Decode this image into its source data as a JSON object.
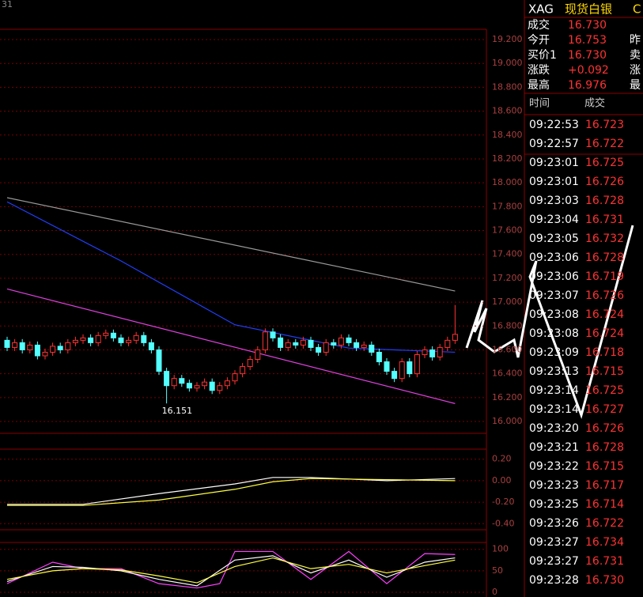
{
  "corner_label": "31",
  "chart_data": [
    {
      "type": "candlestick",
      "annotation": "16.151",
      "ylim": [
        16,
        19.2
      ],
      "yticks": [
        {
          "value": 19.2,
          "label": "19.200"
        },
        {
          "value": 19.0,
          "label": "19.000"
        },
        {
          "value": 18.8,
          "label": "18.800"
        },
        {
          "value": 18.6,
          "label": "18.600"
        },
        {
          "value": 18.4,
          "label": "18.400"
        },
        {
          "value": 18.2,
          "label": "18.200"
        },
        {
          "value": 18.0,
          "label": "18.000"
        },
        {
          "value": 17.8,
          "label": "17.800"
        },
        {
          "value": 17.6,
          "label": "17.600"
        },
        {
          "value": 17.4,
          "label": "17.400"
        },
        {
          "value": 17.2,
          "label": "17.200"
        },
        {
          "value": 17.0,
          "label": "17.000"
        },
        {
          "value": 16.8,
          "label": "16.800"
        },
        {
          "value": 16.6,
          "label": "16.600"
        },
        {
          "value": 16.4,
          "label": "16.400"
        },
        {
          "value": 16.2,
          "label": "16.200"
        },
        {
          "value": 16.0,
          "label": "16.000"
        }
      ],
      "up_color": "#ff3232",
      "down_color": "#54ffff",
      "open": [
        16.68,
        16.62,
        16.66,
        16.6,
        16.64,
        16.55,
        16.58,
        16.63,
        16.6,
        16.66,
        16.68,
        16.7,
        16.66,
        16.72,
        16.74,
        16.7,
        16.66,
        16.68,
        16.72,
        16.66,
        16.6,
        16.42,
        16.3,
        16.36,
        16.32,
        16.28,
        16.3,
        16.33,
        16.26,
        16.3,
        16.34,
        16.4,
        16.46,
        16.52,
        16.6,
        16.75,
        16.7,
        16.62,
        16.66,
        16.64,
        16.68,
        16.62,
        16.58,
        16.66,
        16.64,
        16.7,
        16.66,
        16.62,
        16.64,
        16.58,
        16.5,
        16.42,
        16.36,
        16.5,
        16.4,
        16.56,
        16.6,
        16.54,
        16.62,
        16.68
      ],
      "high": [
        16.71,
        16.69,
        16.69,
        16.67,
        16.67,
        16.61,
        16.66,
        16.66,
        16.69,
        16.71,
        16.73,
        16.73,
        16.75,
        16.77,
        16.77,
        16.73,
        16.71,
        16.75,
        16.75,
        16.69,
        16.63,
        16.45,
        16.39,
        16.39,
        16.35,
        16.33,
        16.36,
        16.36,
        16.33,
        16.37,
        16.43,
        16.49,
        16.55,
        16.63,
        16.78,
        16.78,
        16.73,
        16.69,
        16.69,
        16.71,
        16.71,
        16.65,
        16.69,
        16.69,
        16.73,
        16.73,
        16.69,
        16.67,
        16.67,
        16.61,
        16.53,
        16.45,
        16.53,
        16.53,
        16.59,
        16.63,
        16.63,
        16.65,
        16.71,
        16.976
      ],
      "low": [
        16.59,
        16.59,
        16.57,
        16.57,
        16.52,
        16.52,
        16.55,
        16.57,
        16.57,
        16.63,
        16.65,
        16.63,
        16.63,
        16.69,
        16.67,
        16.63,
        16.63,
        16.65,
        16.63,
        16.57,
        16.39,
        16.151,
        16.27,
        16.29,
        16.25,
        16.25,
        16.27,
        16.23,
        16.23,
        16.27,
        16.31,
        16.37,
        16.43,
        16.49,
        16.57,
        16.67,
        16.59,
        16.59,
        16.61,
        16.61,
        16.59,
        16.55,
        16.55,
        16.61,
        16.61,
        16.63,
        16.59,
        16.59,
        16.55,
        16.47,
        16.39,
        16.33,
        16.33,
        16.37,
        16.37,
        16.53,
        16.51,
        16.51,
        16.59,
        16.65
      ],
      "close": [
        16.62,
        16.66,
        16.6,
        16.64,
        16.55,
        16.58,
        16.63,
        16.6,
        16.66,
        16.68,
        16.7,
        16.66,
        16.72,
        16.74,
        16.7,
        16.66,
        16.68,
        16.72,
        16.66,
        16.6,
        16.42,
        16.3,
        16.36,
        16.32,
        16.28,
        16.3,
        16.33,
        16.26,
        16.3,
        16.34,
        16.4,
        16.46,
        16.52,
        16.6,
        16.75,
        16.7,
        16.62,
        16.66,
        16.64,
        16.68,
        16.62,
        16.58,
        16.66,
        16.64,
        16.7,
        16.66,
        16.62,
        16.64,
        16.58,
        16.5,
        16.42,
        16.36,
        16.5,
        16.4,
        16.56,
        16.6,
        16.54,
        16.62,
        16.68,
        16.73
      ],
      "lines": [
        {
          "color": "#9a9a9a",
          "x": [
            0,
            59
          ],
          "values": [
            17.875,
            17.093
          ]
        },
        {
          "color": "#2040ff",
          "x": [
            0,
            15,
            30,
            45,
            59
          ],
          "values": [
            17.84,
            17.345,
            16.81,
            16.615,
            16.58
          ]
        },
        {
          "color": "#e040e0",
          "x": [
            0,
            59
          ],
          "values": [
            17.11,
            16.15
          ]
        }
      ]
    },
    {
      "type": "line",
      "ylim": [
        -0.42,
        0.22
      ],
      "yticks": [
        {
          "value": 0.2,
          "label": "0.20"
        },
        {
          "value": 0,
          "label": "0.00"
        },
        {
          "value": -0.2,
          "label": "-0.20"
        },
        {
          "value": -0.4,
          "label": "-0.40"
        }
      ],
      "lines": [
        {
          "color": "#ffffff",
          "x": [
            0,
            10,
            20,
            30,
            35,
            40,
            50,
            59
          ],
          "values": [
            -0.22,
            -0.22,
            -0.12,
            -0.03,
            0.03,
            0.03,
            0.0,
            0.02
          ]
        },
        {
          "color": "#ffff40",
          "x": [
            0,
            10,
            20,
            30,
            35,
            40,
            50,
            59
          ],
          "values": [
            -0.23,
            -0.23,
            -0.18,
            -0.08,
            -0.01,
            0.02,
            0.01,
            0.0
          ]
        }
      ]
    },
    {
      "type": "line",
      "ylim": [
        0,
        105
      ],
      "yticks": [
        100,
        50,
        0
      ],
      "lines": [
        {
          "color": "#ff40ff",
          "x": [
            0,
            6,
            10,
            15,
            20,
            25,
            28,
            30,
            35,
            40,
            45,
            50,
            55,
            59
          ],
          "values": [
            20,
            70,
            55,
            55,
            20,
            10,
            20,
            95,
            95,
            30,
            95,
            20,
            90,
            88
          ]
        },
        {
          "color": "#ffffff",
          "x": [
            0,
            6,
            10,
            15,
            20,
            25,
            30,
            35,
            40,
            45,
            50,
            55,
            59
          ],
          "values": [
            25,
            60,
            58,
            50,
            30,
            15,
            75,
            85,
            45,
            75,
            35,
            70,
            80
          ]
        },
        {
          "color": "#ffff40",
          "x": [
            0,
            6,
            10,
            15,
            20,
            25,
            30,
            35,
            40,
            45,
            50,
            55,
            59
          ],
          "values": [
            30,
            50,
            55,
            52,
            38,
            22,
            60,
            80,
            55,
            65,
            45,
            62,
            75
          ]
        }
      ]
    }
  ],
  "quote": {
    "code": "XAG",
    "name": "现货白银",
    "extra": "C",
    "rows": [
      [
        "成交",
        "16.730",
        ""
      ],
      [
        "今开",
        "16.753",
        "昨"
      ],
      [
        "买价1",
        "16.730",
        "卖"
      ],
      [
        "涨跌",
        "+0.092",
        "涨"
      ],
      [
        "最高",
        "16.976",
        "最"
      ]
    ]
  },
  "trades": {
    "header": [
      "时间",
      "成交"
    ],
    "rows": [
      [
        "09:22:53",
        "16.723"
      ],
      [
        "09:22:57",
        "16.722"
      ],
      [
        "09:23:01",
        "16.725"
      ],
      [
        "09:23:01",
        "16.726"
      ],
      [
        "09:23:03",
        "16.728"
      ],
      [
        "09:23:04",
        "16.731"
      ],
      [
        "09:23:05",
        "16.732"
      ],
      [
        "09:23:06",
        "16.728"
      ],
      [
        "09:23:06",
        "16.719"
      ],
      [
        "09:23:07",
        "16.726"
      ],
      [
        "09:23:08",
        "16.724"
      ],
      [
        "09:23:08",
        "16.724"
      ],
      [
        "09:23:09",
        "16.718"
      ],
      [
        "09:23:13",
        "16.715"
      ],
      [
        "09:23:14",
        "16.725"
      ],
      [
        "09:23:14",
        "16.727"
      ],
      [
        "09:23:20",
        "16.726"
      ],
      [
        "09:23:21",
        "16.728"
      ],
      [
        "09:23:22",
        "16.715"
      ],
      [
        "09:23:23",
        "16.717"
      ],
      [
        "09:23:25",
        "16.714"
      ],
      [
        "09:23:26",
        "16.722"
      ],
      [
        "09:23:27",
        "16.734"
      ],
      [
        "09:23:27",
        "16.731"
      ],
      [
        "09:23:28",
        "16.730"
      ]
    ]
  }
}
